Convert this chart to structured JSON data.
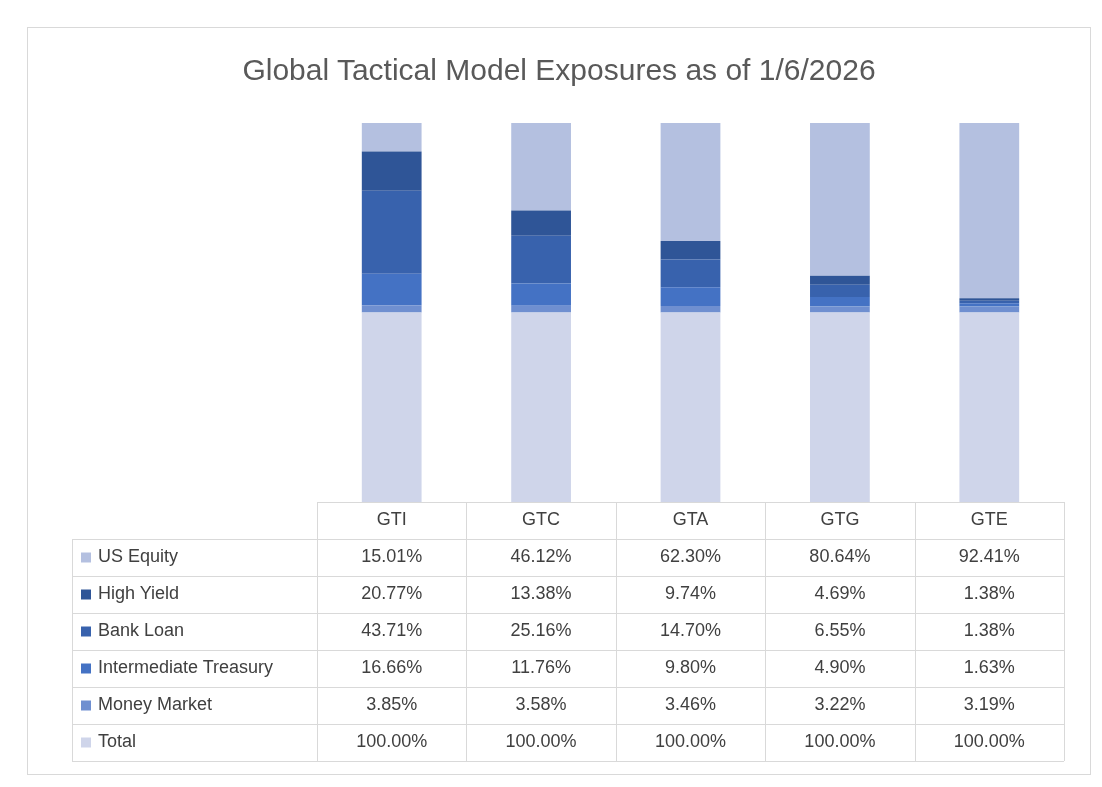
{
  "chart_data": {
    "type": "bar",
    "title": "Global Tactical Model Exposures as of 1/6/2026",
    "stacked": true,
    "legend": "bottom",
    "categories": [
      "GTI",
      "GTC",
      "GTA",
      "GTG",
      "GTE"
    ],
    "series": [
      {
        "name": "Total",
        "color": "#cfd5ea",
        "values": [
          100,
          100,
          100,
          100,
          100
        ],
        "value_labels": [
          "100.00%",
          "100.00%",
          "100.00%",
          "100.00%",
          "100.00%"
        ]
      },
      {
        "name": "Money Market",
        "color": "#6f8fd0",
        "values": [
          3.85,
          3.58,
          3.46,
          3.22,
          3.19
        ],
        "value_labels": [
          "3.85%",
          "3.58%",
          "3.46%",
          "3.22%",
          "3.19%"
        ]
      },
      {
        "name": "Intermediate Treasury",
        "color": "#4472c4",
        "values": [
          16.66,
          11.76,
          9.8,
          4.9,
          1.63
        ],
        "value_labels": [
          "16.66%",
          "11.76%",
          "9.80%",
          "4.90%",
          "1.63%"
        ]
      },
      {
        "name": "Bank Loan",
        "color": "#3862ad",
        "values": [
          43.71,
          25.16,
          14.7,
          6.55,
          1.38
        ],
        "value_labels": [
          "43.71%",
          "25.16%",
          "14.70%",
          "6.55%",
          "1.38%"
        ]
      },
      {
        "name": "High Yield",
        "color": "#2f5597",
        "values": [
          20.77,
          13.38,
          9.74,
          4.69,
          1.38
        ],
        "value_labels": [
          "20.77%",
          "13.38%",
          "9.74%",
          "4.69%",
          "1.38%"
        ]
      },
      {
        "name": "US Equity",
        "color": "#b4c0e0",
        "values": [
          15.01,
          46.12,
          62.3,
          80.64,
          92.41
        ],
        "value_labels": [
          "15.01%",
          "46.12%",
          "62.30%",
          "80.64%",
          "92.41%"
        ]
      }
    ]
  }
}
